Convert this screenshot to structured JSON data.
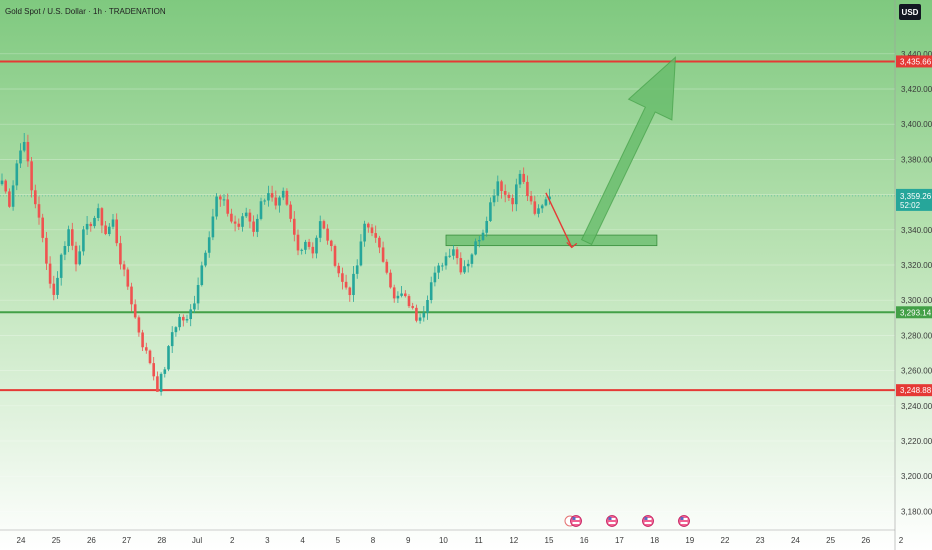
{
  "header": {
    "title": "Gold Spot / U.S. Dollar · 1h · TRADENATION"
  },
  "currency": "USD",
  "colors": {
    "bull": "#26a69a",
    "bear": "#ef5350",
    "resistance": "#e53935",
    "support": "#43a047",
    "arrow_up": "#66bb6a",
    "arrow_down": "#e53935",
    "last_price": "#26a69a",
    "bg_top": "#7fc97f",
    "bg_bottom": "#ffffff"
  },
  "chart_data": {
    "type": "candlestick",
    "ylim": [
      3170,
      3460
    ],
    "y_ticks": [
      "3,180.00",
      "3,200.00",
      "3,220.00",
      "3,240.00",
      "3,260.00",
      "3,280.00",
      "3,300.00",
      "3,320.00",
      "3,340.00",
      "3,360.00",
      "3,380.00",
      "3,400.00",
      "3,420.00",
      "3,440.00"
    ],
    "x_ticks": [
      "24",
      "25",
      "26",
      "27",
      "28",
      "Jul",
      "2",
      "3",
      "4",
      "5",
      "8",
      "9",
      "10",
      "11",
      "12",
      "15",
      "16",
      "17",
      "18",
      "19",
      "22",
      "23",
      "24",
      "25",
      "26",
      "2"
    ],
    "levels": [
      {
        "name": "resistance",
        "value": 3435.66,
        "label": "3,435.66",
        "color": "#e53935"
      },
      {
        "name": "support",
        "value": 3293.14,
        "label": "3,293.14",
        "color": "#43a047"
      },
      {
        "name": "low",
        "value": 3248.88,
        "label": "3,248.88",
        "color": "#e53935"
      }
    ],
    "last_price": {
      "value": 3359.26,
      "label": "3,359.26",
      "countdown": "52:02"
    },
    "zone": {
      "from": 3331,
      "to": 3337,
      "start_index": 120,
      "end_index": 177
    },
    "projection_down": {
      "from_index": 147,
      "from_value": 3361,
      "to_index": 154,
      "to_value": 3330
    },
    "projection_up": {
      "from_index": 158,
      "from_value": 3333,
      "to_index": 182,
      "to_value": 3438
    },
    "event_indices": [
      150,
      160,
      170,
      180
    ],
    "waypoints": [
      [
        0,
        3368
      ],
      [
        2,
        3355
      ],
      [
        4,
        3378
      ],
      [
        6,
        3392
      ],
      [
        8,
        3362
      ],
      [
        10,
        3348
      ],
      [
        12,
        3320
      ],
      [
        14,
        3303
      ],
      [
        16,
        3325
      ],
      [
        18,
        3340
      ],
      [
        20,
        3322
      ],
      [
        22,
        3338
      ],
      [
        24,
        3344
      ],
      [
        26,
        3350
      ],
      [
        28,
        3338
      ],
      [
        30,
        3345
      ],
      [
        32,
        3322
      ],
      [
        34,
        3308
      ],
      [
        36,
        3290
      ],
      [
        38,
        3275
      ],
      [
        40,
        3265
      ],
      [
        42,
        3250
      ],
      [
        44,
        3262
      ],
      [
        46,
        3282
      ],
      [
        48,
        3290
      ],
      [
        50,
        3288
      ],
      [
        52,
        3300
      ],
      [
        54,
        3320
      ],
      [
        56,
        3338
      ],
      [
        58,
        3358
      ],
      [
        60,
        3355
      ],
      [
        62,
        3345
      ],
      [
        64,
        3342
      ],
      [
        66,
        3350
      ],
      [
        68,
        3340
      ],
      [
        70,
        3355
      ],
      [
        72,
        3362
      ],
      [
        74,
        3352
      ],
      [
        76,
        3360
      ],
      [
        78,
        3345
      ],
      [
        80,
        3328
      ],
      [
        82,
        3334
      ],
      [
        84,
        3328
      ],
      [
        86,
        3344
      ],
      [
        88,
        3335
      ],
      [
        90,
        3322
      ],
      [
        92,
        3310
      ],
      [
        94,
        3305
      ],
      [
        96,
        3320
      ],
      [
        98,
        3343
      ],
      [
        100,
        3340
      ],
      [
        102,
        3328
      ],
      [
        104,
        3318
      ],
      [
        106,
        3300
      ],
      [
        108,
        3303
      ],
      [
        110,
        3298
      ],
      [
        112,
        3290
      ],
      [
        114,
        3295
      ],
      [
        116,
        3310
      ],
      [
        118,
        3318
      ],
      [
        120,
        3325
      ],
      [
        122,
        3330
      ],
      [
        124,
        3318
      ],
      [
        126,
        3322
      ],
      [
        128,
        3332
      ],
      [
        130,
        3340
      ],
      [
        132,
        3355
      ],
      [
        134,
        3368
      ],
      [
        136,
        3360
      ],
      [
        138,
        3357
      ],
      [
        140,
        3372
      ],
      [
        142,
        3360
      ],
      [
        144,
        3348
      ],
      [
        146,
        3355
      ],
      [
        148,
        3361
      ]
    ]
  }
}
